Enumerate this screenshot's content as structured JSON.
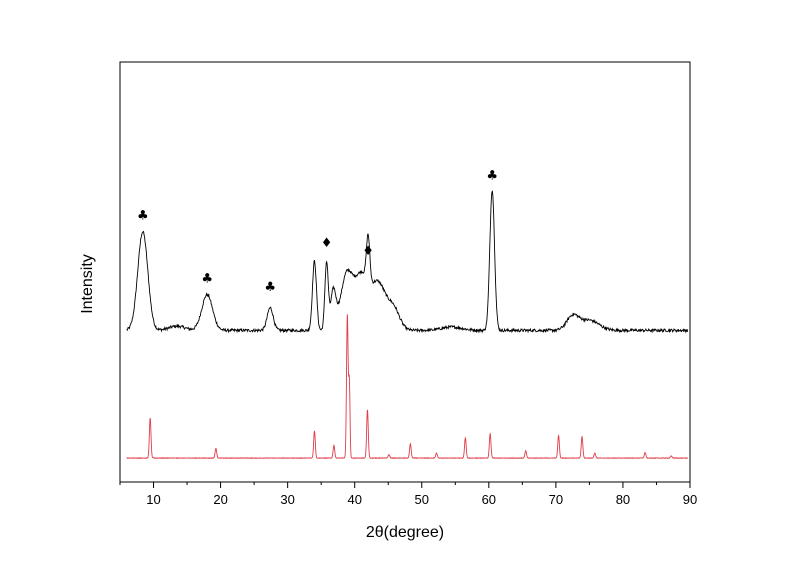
{
  "chart_data": {
    "type": "line",
    "title": "",
    "xlabel": "2θ(degree)",
    "ylabel": "Intensity",
    "xlim": [
      5,
      90
    ],
    "ylim": [
      0,
      100
    ],
    "yticks_shown": false,
    "grid": false,
    "legend": "none",
    "xticks": [
      10,
      20,
      30,
      40,
      50,
      60,
      70,
      80,
      90
    ],
    "xtick_labels": [
      "10",
      "20",
      "30",
      "40",
      "50",
      "60",
      "70",
      "80",
      "90"
    ],
    "series": [
      {
        "color": "#000000",
        "baseline": 36.1,
        "noise": 0.35,
        "peaks": [
          {
            "x": 8.4,
            "h": 23.5,
            "w": 0.75
          },
          {
            "x": 13.5,
            "h": 1.0,
            "w": 1.2
          },
          {
            "x": 18.0,
            "h": 8.5,
            "w": 0.8
          },
          {
            "x": 27.4,
            "h": 5.4,
            "w": 0.45
          },
          {
            "x": 34.0,
            "h": 16.5,
            "w": 0.3
          },
          {
            "x": 35.8,
            "h": 16.0,
            "w": 0.25
          },
          {
            "x": 36.8,
            "h": 9.0,
            "w": 0.4
          },
          {
            "x": 38.8,
            "h": 13.0,
            "w": 0.9
          },
          {
            "x": 41.0,
            "h": 12.5,
            "w": 1.0
          },
          {
            "x": 42.0,
            "h": 11.0,
            "w": 0.25
          },
          {
            "x": 43.5,
            "h": 11.0,
            "w": 1.1
          },
          {
            "x": 45.8,
            "h": 5.0,
            "w": 0.9
          },
          {
            "x": 54.5,
            "h": 0.8,
            "w": 1.5
          },
          {
            "x": 60.5,
            "h": 33.5,
            "w": 0.35
          },
          {
            "x": 72.5,
            "h": 3.3,
            "w": 0.9
          },
          {
            "x": 75.0,
            "h": 2.4,
            "w": 1.4
          }
        ]
      },
      {
        "color": "#e03c4a",
        "baseline": 5.7,
        "noise": 0.05,
        "peaks": [
          {
            "x": 9.5,
            "h": 9.5,
            "w": 0.12
          },
          {
            "x": 19.3,
            "h": 2.3,
            "w": 0.12
          },
          {
            "x": 34.0,
            "h": 6.5,
            "w": 0.12
          },
          {
            "x": 36.9,
            "h": 3.0,
            "w": 0.12
          },
          {
            "x": 38.9,
            "h": 34.0,
            "w": 0.12
          },
          {
            "x": 39.2,
            "h": 18.0,
            "w": 0.1
          },
          {
            "x": 41.9,
            "h": 11.5,
            "w": 0.12
          },
          {
            "x": 45.1,
            "h": 0.8,
            "w": 0.12
          },
          {
            "x": 48.3,
            "h": 3.4,
            "w": 0.12
          },
          {
            "x": 52.2,
            "h": 1.2,
            "w": 0.12
          },
          {
            "x": 56.5,
            "h": 4.8,
            "w": 0.12
          },
          {
            "x": 60.2,
            "h": 5.8,
            "w": 0.12
          },
          {
            "x": 65.5,
            "h": 1.7,
            "w": 0.12
          },
          {
            "x": 70.4,
            "h": 5.4,
            "w": 0.12
          },
          {
            "x": 73.9,
            "h": 5.1,
            "w": 0.12
          },
          {
            "x": 75.8,
            "h": 1.2,
            "w": 0.12
          },
          {
            "x": 83.3,
            "h": 1.3,
            "w": 0.12
          },
          {
            "x": 87.2,
            "h": 0.5,
            "w": 0.12
          }
        ]
      }
    ],
    "annotations": [
      {
        "symbol": "♣",
        "x": 8.4,
        "y": 62.5
      },
      {
        "symbol": "♣",
        "x": 18.0,
        "y": 47.5
      },
      {
        "symbol": "♣",
        "x": 27.4,
        "y": 45.5
      },
      {
        "symbol": "♦",
        "x": 35.8,
        "y": 56.0
      },
      {
        "symbol": "♦",
        "x": 42.0,
        "y": 54.0
      },
      {
        "symbol": "♣",
        "x": 60.5,
        "y": 72.0
      }
    ]
  }
}
